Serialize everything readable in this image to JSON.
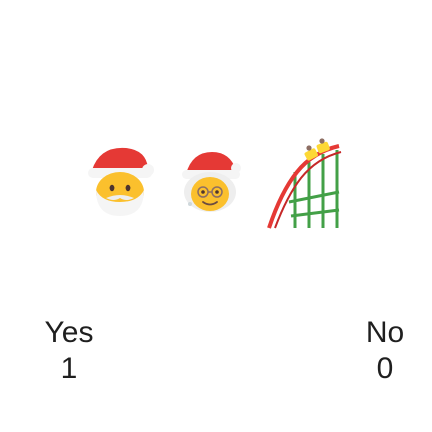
{
  "emojis": [
    {
      "icon": "santa-claus-icon"
    },
    {
      "icon": "mrs-claus-icon"
    },
    {
      "icon": "roller-coaster-icon"
    }
  ],
  "poll": {
    "yes_label": "Yes",
    "no_label": "No",
    "yes_count": "1",
    "no_count": "0"
  },
  "colors": {
    "hat_red": "#e53935",
    "skin": "#fbc02d",
    "fur_white": "#f5f5f5",
    "coaster_green": "#43a047",
    "coaster_red": "#e53935"
  }
}
